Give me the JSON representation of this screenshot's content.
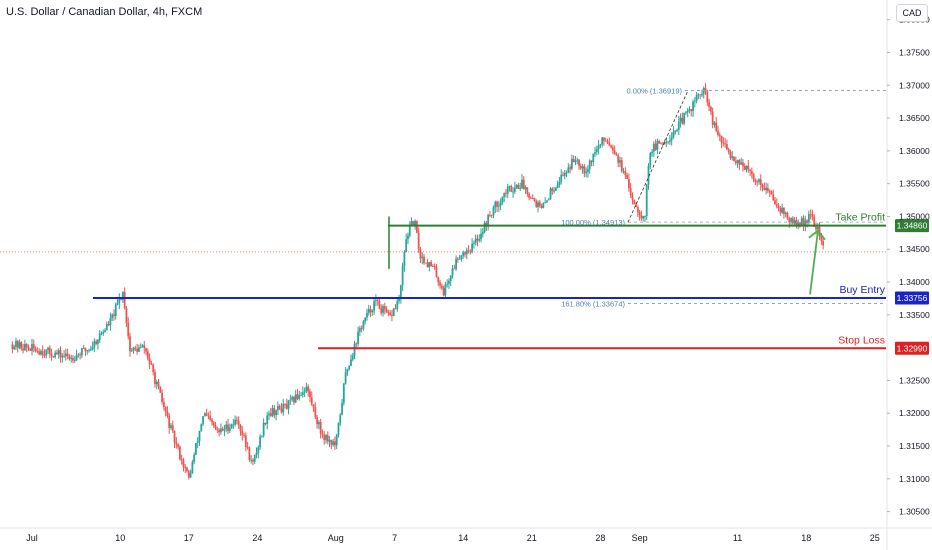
{
  "header": {
    "title": "U.S. Dollar / Canadian Dollar, 4h, FXCM",
    "currency": "CAD"
  },
  "colors": {
    "up": "#26a69a",
    "down": "#ef5350",
    "take_profit": "#2e7d32",
    "buy_entry": "#1a23c8",
    "stop_loss": "#e01e1e",
    "fib": "#4a7fb5",
    "arrow": "#4caf50"
  },
  "chart_data": {
    "type": "candlestick",
    "title": "U.S. Dollar / Canadian Dollar, 4h, FXCM",
    "ylim": [
      1.3025,
      1.383
    ],
    "y_ticks": [
      "1.30500",
      "1.31000",
      "1.31500",
      "1.32000",
      "1.32500",
      "1.32990",
      "1.33500",
      "1.33756",
      "1.34000",
      "1.34500",
      "1.34860",
      "1.35000",
      "1.35500",
      "1.36000",
      "1.36500",
      "1.37000",
      "1.37500",
      "1.38000"
    ],
    "x_ticks": [
      {
        "label": "Jul",
        "day": 0
      },
      {
        "label": "10",
        "day": 9
      },
      {
        "label": "17",
        "day": 16
      },
      {
        "label": "24",
        "day": 23
      },
      {
        "label": "Aug",
        "day": 31
      },
      {
        "label": "7",
        "day": 37
      },
      {
        "label": "14",
        "day": 44
      },
      {
        "label": "21",
        "day": 51
      },
      {
        "label": "28",
        "day": 58
      },
      {
        "label": "Sep",
        "day": 62
      },
      {
        "label": "11",
        "day": 72
      },
      {
        "label": "18",
        "day": 79
      },
      {
        "label": "25",
        "day": 86
      }
    ],
    "last_price_dotted": 1.3446,
    "price_path": [
      [
        -2,
        1.3305
      ],
      [
        1,
        1.3295
      ],
      [
        4,
        1.3285
      ],
      [
        6,
        1.33
      ],
      [
        8,
        1.334
      ],
      [
        9.3,
        1.3385
      ],
      [
        10,
        1.3295
      ],
      [
        11.5,
        1.33
      ],
      [
        13,
        1.323
      ],
      [
        14.5,
        1.316
      ],
      [
        16,
        1.31
      ],
      [
        17.5,
        1.32
      ],
      [
        19,
        1.317
      ],
      [
        21,
        1.319
      ],
      [
        22.5,
        1.312
      ],
      [
        24,
        1.32
      ],
      [
        26,
        1.321
      ],
      [
        28,
        1.324
      ],
      [
        29.5,
        1.317
      ],
      [
        31,
        1.315
      ],
      [
        32,
        1.326
      ],
      [
        33.5,
        1.333
      ],
      [
        35,
        1.337
      ],
      [
        36.5,
        1.3345
      ],
      [
        37.5,
        1.3375
      ],
      [
        38.2,
        1.347
      ],
      [
        39,
        1.3495
      ],
      [
        39.6,
        1.344
      ],
      [
        41,
        1.342
      ],
      [
        42,
        1.3385
      ],
      [
        43.5,
        1.344
      ],
      [
        45,
        1.3455
      ],
      [
        46,
        1.348
      ],
      [
        47,
        1.351
      ],
      [
        48.5,
        1.354
      ],
      [
        50,
        1.355
      ],
      [
        51,
        1.353
      ],
      [
        52,
        1.351
      ],
      [
        53,
        1.354
      ],
      [
        54.5,
        1.357
      ],
      [
        55.5,
        1.359
      ],
      [
        56.5,
        1.357
      ],
      [
        57.5,
        1.36
      ],
      [
        58.5,
        1.362
      ],
      [
        59.5,
        1.36
      ],
      [
        60.5,
        1.356
      ],
      [
        61.5,
        1.352
      ],
      [
        62.5,
        1.3495
      ],
      [
        63,
        1.36
      ],
      [
        64,
        1.361
      ],
      [
        65,
        1.362
      ],
      [
        66,
        1.364
      ],
      [
        67,
        1.366
      ],
      [
        68,
        1.3685
      ],
      [
        68.7,
        1.369
      ],
      [
        69.5,
        1.364
      ],
      [
        70.5,
        1.361
      ],
      [
        71.5,
        1.359
      ],
      [
        72.5,
        1.358
      ],
      [
        73.5,
        1.356
      ],
      [
        74.5,
        1.355
      ],
      [
        75.5,
        1.353
      ],
      [
        76.5,
        1.351
      ],
      [
        77.5,
        1.349
      ],
      [
        78.5,
        1.349
      ],
      [
        79.5,
        1.35
      ],
      [
        80.3,
        1.3475
      ],
      [
        80.8,
        1.345
      ]
    ],
    "annotations": {
      "take_profit": {
        "label": "Take Profit",
        "value": "1.34860",
        "price": 1.3486
      },
      "buy_entry": {
        "label": "Buy Entry",
        "value": "1.33756",
        "price": 1.33756
      },
      "stop_loss": {
        "label": "Stop Loss",
        "value": "1.32990",
        "price": 1.3299
      },
      "fib_0": {
        "label": "0.00% (1.36919)",
        "price": 1.36919
      },
      "fib_100": {
        "label": "100.00% (1.34913)",
        "price": 1.34913
      },
      "fib_161": {
        "label": "161.80% (1.33674)",
        "price": 1.33674
      }
    }
  }
}
